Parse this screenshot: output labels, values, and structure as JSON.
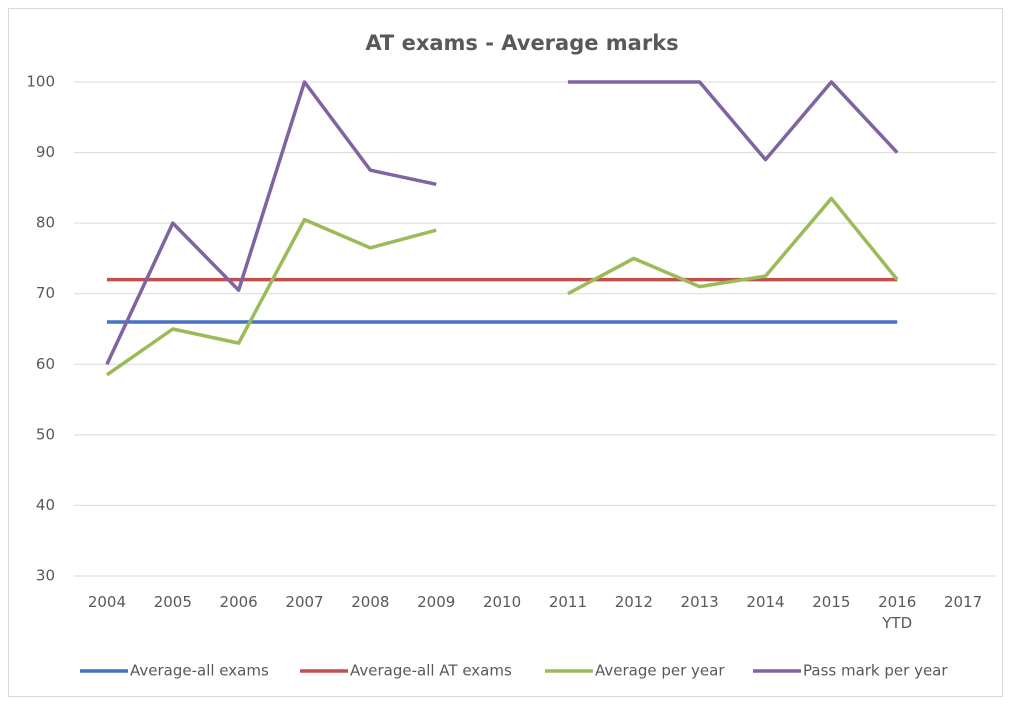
{
  "chart_data": {
    "type": "line",
    "title": "AT exams - Average marks",
    "categories": [
      "2004",
      "2005",
      "2006",
      "2007",
      "2008",
      "2009",
      "2010",
      "2011",
      "2012",
      "2013",
      "2014",
      "2015",
      "2016 YTD",
      "2017"
    ],
    "series": [
      {
        "name": "Average-all exams",
        "color": "#4472c4",
        "values": [
          66,
          66,
          66,
          66,
          66,
          66,
          66,
          66,
          66,
          66,
          66,
          66,
          66,
          null
        ]
      },
      {
        "name": "Average-all AT exams",
        "color": "#c0504d",
        "values": [
          72,
          72,
          72,
          72,
          72,
          72,
          72,
          72,
          72,
          72,
          72,
          72,
          72,
          null
        ]
      },
      {
        "name": "Average per year",
        "color": "#9bbb59",
        "values": [
          58.5,
          65,
          63,
          80.5,
          76.5,
          79,
          null,
          70,
          75,
          71,
          72.5,
          83.5,
          72,
          null
        ]
      },
      {
        "name": "Pass mark per year",
        "color": "#8064a2",
        "values": [
          60,
          80,
          70.5,
          100,
          87.5,
          85.5,
          null,
          100,
          100,
          100,
          89,
          100,
          90,
          null
        ]
      }
    ],
    "ylim": [
      30,
      100
    ],
    "yticks": [
      30,
      40,
      50,
      60,
      70,
      80,
      90,
      100
    ],
    "grid": true,
    "legend": "bottom"
  }
}
